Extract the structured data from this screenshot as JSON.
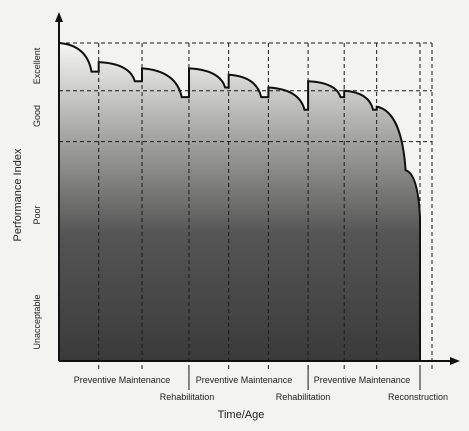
{
  "chart_data": {
    "type": "area",
    "title": "",
    "xlabel": "Time/Age",
    "ylabel": "Performance Index",
    "zones": [
      "Excellent",
      "Good",
      "Poor",
      "Unacceptable"
    ],
    "interventions_top": [
      "Preventive Maintenance",
      "Preventive Maintenance",
      "Preventive Maintenance"
    ],
    "interventions_bottom": [
      "Rehabilitation",
      "Rehabilitation",
      "Reconstruction"
    ],
    "curve": [
      {
        "t": 0.0,
        "pi": 1.0
      },
      {
        "t": 0.09,
        "pi": 0.91
      },
      {
        "t": 0.11,
        "pi": 0.94
      },
      {
        "t": 0.21,
        "pi": 0.88
      },
      {
        "t": 0.23,
        "pi": 0.92
      },
      {
        "t": 0.34,
        "pi": 0.83
      },
      {
        "t": 0.36,
        "pi": 0.92
      },
      {
        "t": 0.46,
        "pi": 0.86
      },
      {
        "t": 0.47,
        "pi": 0.9
      },
      {
        "t": 0.56,
        "pi": 0.83
      },
      {
        "t": 0.58,
        "pi": 0.86
      },
      {
        "t": 0.68,
        "pi": 0.79
      },
      {
        "t": 0.69,
        "pi": 0.88
      },
      {
        "t": 0.78,
        "pi": 0.83
      },
      {
        "t": 0.79,
        "pi": 0.85
      },
      {
        "t": 0.87,
        "pi": 0.79
      },
      {
        "t": 0.88,
        "pi": 0.8
      },
      {
        "t": 0.96,
        "pi": 0.6
      },
      {
        "t": 1.0,
        "pi": 0.45
      }
    ],
    "colors": {
      "fill_top": "#f4f4f2",
      "fill_bottom": "#3d3d3d",
      "line": "#111111"
    }
  }
}
